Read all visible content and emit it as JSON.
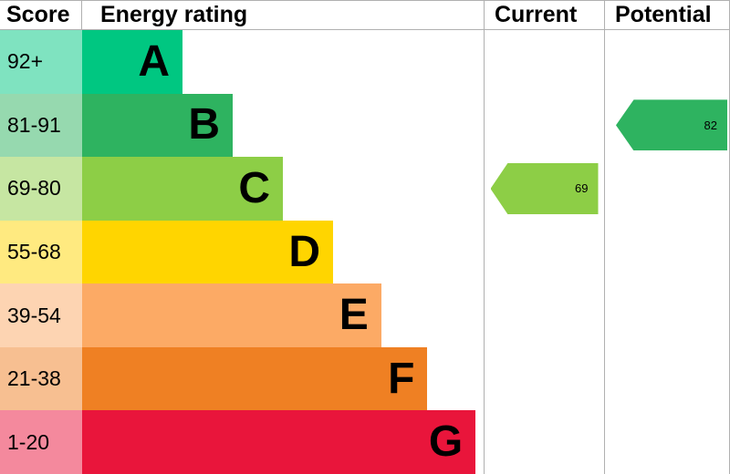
{
  "header": {
    "score": "Score",
    "rating": "Energy rating",
    "current": "Current",
    "potential": "Potential"
  },
  "chart_data": {
    "type": "bar",
    "title": "EPC energy efficiency rating chart",
    "categories": [
      "A",
      "B",
      "C",
      "D",
      "E",
      "F",
      "G"
    ],
    "bands": [
      {
        "score": "92+",
        "letter": "A",
        "color": "#00c781",
        "tint": "#7fe3c0",
        "width_pct": 25
      },
      {
        "score": "81-91",
        "letter": "B",
        "color": "#2eb360",
        "tint": "#96d9af",
        "width_pct": 37.5
      },
      {
        "score": "69-80",
        "letter": "C",
        "color": "#8dce46",
        "tint": "#c6e6a2",
        "width_pct": 50
      },
      {
        "score": "55-68",
        "letter": "D",
        "color": "#ffd500",
        "tint": "#ffea80",
        "width_pct": 62.5
      },
      {
        "score": "39-54",
        "letter": "E",
        "color": "#fcaa65",
        "tint": "#fdd4b2",
        "width_pct": 74.5
      },
      {
        "score": "21-38",
        "letter": "F",
        "color": "#ef8023",
        "tint": "#f7bf91",
        "width_pct": 86
      },
      {
        "score": "1-20",
        "letter": "G",
        "color": "#e9153b",
        "tint": "#f4899d",
        "width_pct": 98
      }
    ],
    "current": {
      "value": "69",
      "band": "C",
      "band_index": 2,
      "color": "#8dce46"
    },
    "potential": {
      "value": "82",
      "band": "B",
      "band_index": 1,
      "color": "#2eb360"
    }
  }
}
